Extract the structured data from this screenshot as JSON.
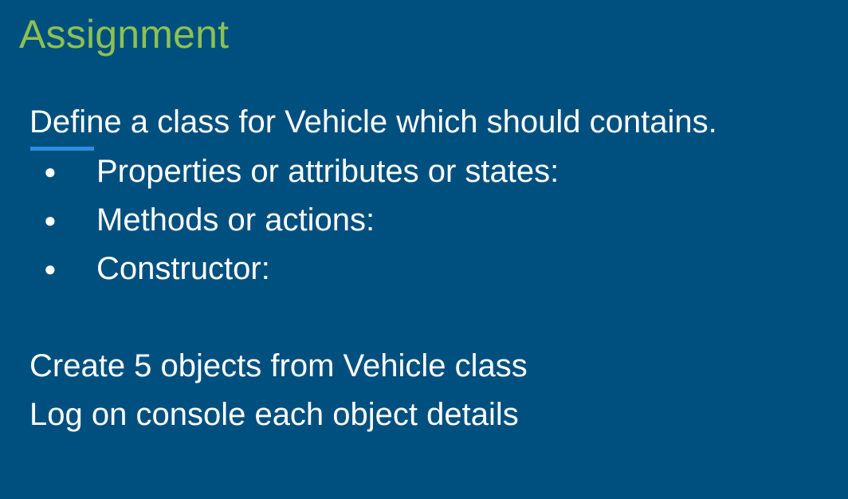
{
  "slide": {
    "title": "Assignment",
    "intro": "Define a class for Vehicle which should contains.",
    "bullets": [
      {
        "marker": "●",
        "text": "Properties or attributes or states:"
      },
      {
        "marker": "●",
        "text": "Methods or actions:"
      },
      {
        "marker": "●",
        "text": "Constructor:"
      }
    ],
    "instructions": [
      "Create 5 objects from Vehicle class",
      "Log on console each object details"
    ]
  },
  "colors": {
    "background": "#00507f",
    "title": "#8cc152",
    "text": "#ffffff",
    "accent_bar": "#2a8fe0"
  }
}
